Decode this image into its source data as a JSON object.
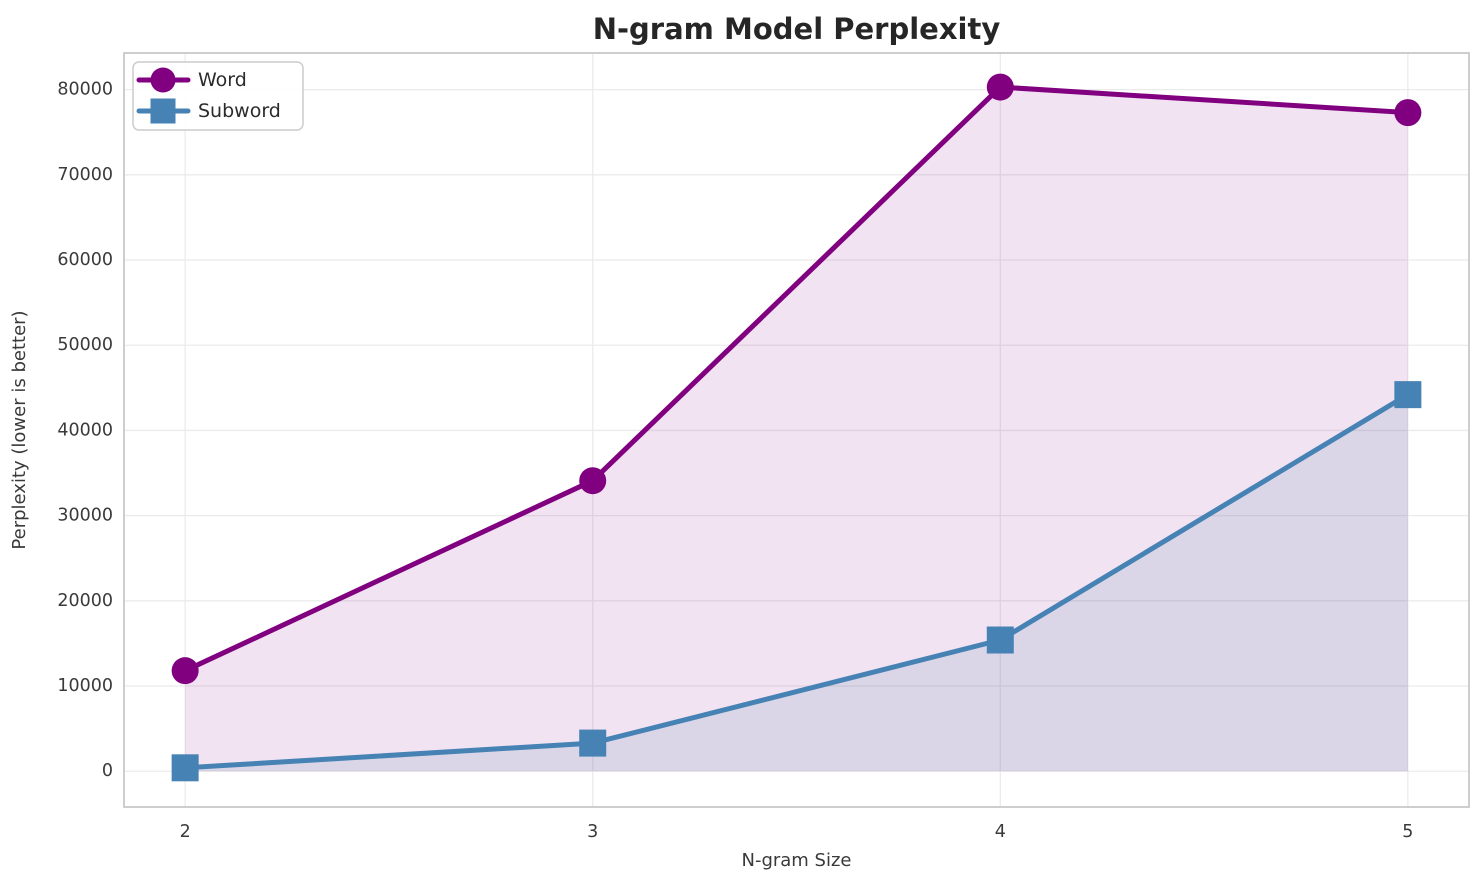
{
  "chart_data": {
    "type": "line",
    "title": "N-gram Model Perplexity",
    "xlabel": "N-gram Size",
    "ylabel": "Perplexity (lower is better)",
    "x": [
      2,
      3,
      4,
      5
    ],
    "series": [
      {
        "name": "Word",
        "values": [
          11800,
          34100,
          80300,
          77300
        ],
        "color": "#800080",
        "marker": "circle",
        "fill_opacity": 0.11
      },
      {
        "name": "Subword",
        "values": [
          400,
          3300,
          15400,
          44200
        ],
        "color": "#4682B4",
        "marker": "square",
        "fill_opacity": 0.13
      }
    ],
    "xticks": [
      2,
      3,
      4,
      5
    ],
    "yticks": [
      0,
      10000,
      20000,
      30000,
      40000,
      50000,
      60000,
      70000,
      80000
    ],
    "xlim": [
      1.85,
      5.15
    ],
    "ylim": [
      -4200,
      84300
    ],
    "grid": true,
    "area_fill_to_zero": true,
    "legend_position": "upper-left",
    "style": {
      "background": "#ffffff",
      "grid_color": "#ebebeb",
      "spine_color": "#c8c8c8",
      "tick_text_color": "#3a3a3a",
      "title_color": "#262626",
      "legend_border_color": "#cccccc",
      "legend_background": "#ffffff"
    }
  }
}
